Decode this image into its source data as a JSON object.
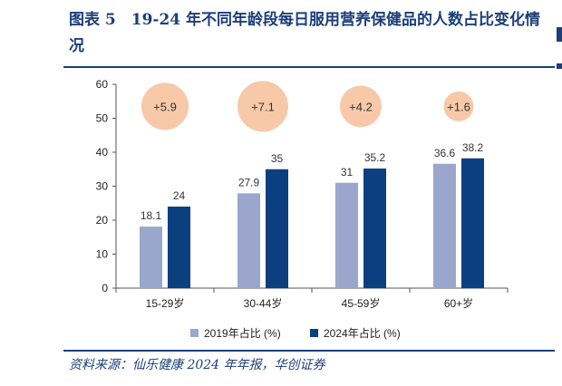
{
  "header": {
    "title": "图表 5　19-24 年不同年龄段每日服用营养保健品的人数占比变化情况"
  },
  "footer": {
    "source": "资料来源：仙乐健康 2024 年年报，华创证券"
  },
  "colors": {
    "brand": "#1c3f79",
    "series_2019": "#9aa6cb",
    "series_2024": "#0b3f80",
    "bubble": "#f7c9a9"
  },
  "chart_data": {
    "type": "bar",
    "categories": [
      "15-29岁",
      "30-44岁",
      "45-59岁",
      "60+岁"
    ],
    "series": [
      {
        "name": "2019年占比 (%)",
        "values": [
          18.1,
          27.9,
          31,
          36.6
        ]
      },
      {
        "name": "2024年占比 (%)",
        "values": [
          24,
          35,
          35.2,
          38.2
        ]
      }
    ],
    "value_labels": [
      [
        "18.1",
        "27.9",
        "31",
        "36.6"
      ],
      [
        "24",
        "35",
        "35.2",
        "38.2"
      ]
    ],
    "annotations": {
      "labels": [
        "+5.9",
        "+7.1",
        "+4.2",
        "+1.6"
      ],
      "values": [
        5.9,
        7.1,
        4.2,
        1.6
      ],
      "center_y": 53.5
    },
    "ylim": [
      0,
      60
    ],
    "yticks": [
      0,
      10,
      20,
      30,
      40,
      50,
      60
    ],
    "legend": "bottom",
    "grid": false
  }
}
